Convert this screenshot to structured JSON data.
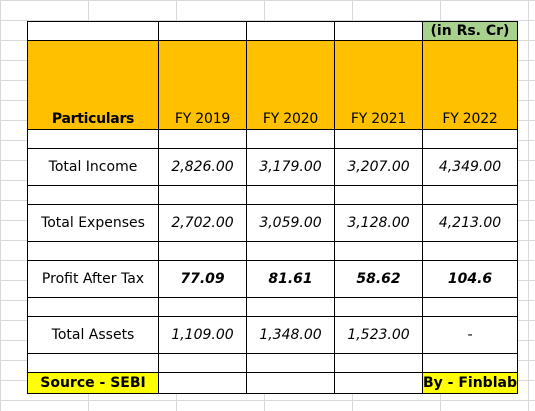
{
  "unit_note": "(in Rs. Cr)",
  "header": {
    "particulars": "Particulars",
    "years": [
      "FY 2019",
      "FY 2020",
      "FY 2021",
      "FY 2022"
    ]
  },
  "rows": [
    {
      "label": "Total Income",
      "values": [
        "2,826.00",
        "3,179.00",
        "3,207.00",
        "4,349.00"
      ]
    },
    {
      "label": "Total Expenses",
      "values": [
        "2,702.00",
        "3,059.00",
        "3,128.00",
        "4,213.00"
      ]
    },
    {
      "label": "Profit After Tax",
      "values": [
        "77.09",
        "81.61",
        "58.62",
        "104.6"
      ]
    },
    {
      "label": "Total Assets",
      "values": [
        "1,109.00",
        "1,348.00",
        "1,523.00",
        "-"
      ]
    }
  ],
  "footer": {
    "source": "Source - SEBI",
    "by": "By - Finblab"
  },
  "colors": {
    "header_fill": "#ffc000",
    "unit_note_fill": "#a9d18e",
    "footer_fill": "#ffff00"
  }
}
